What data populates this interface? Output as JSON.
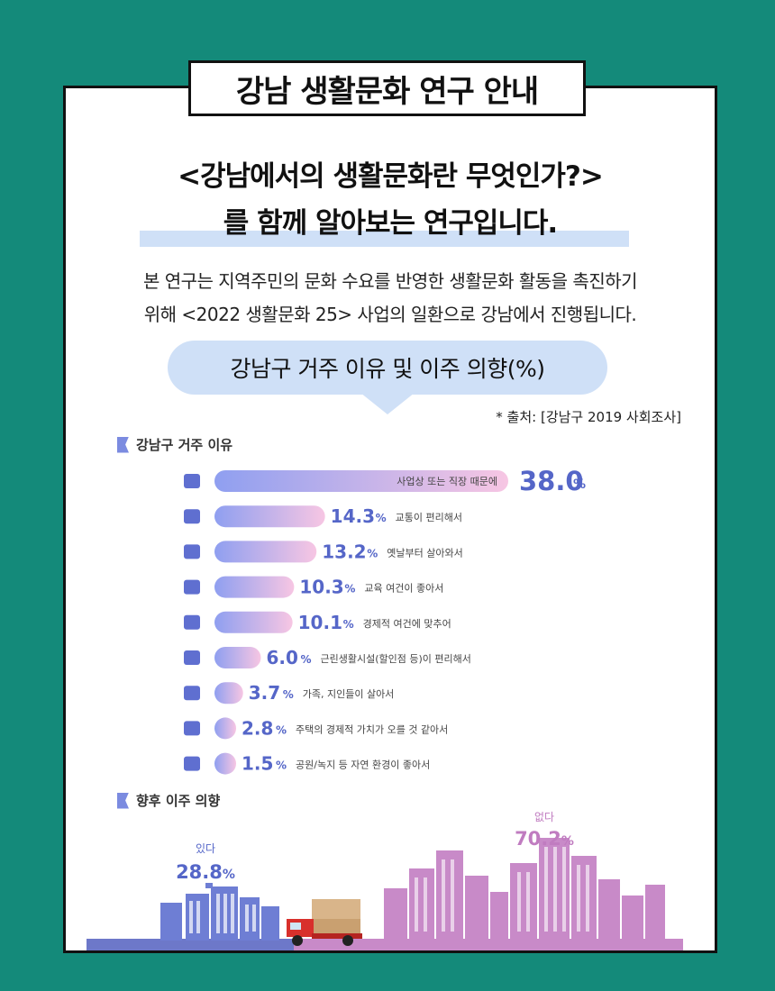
{
  "header": {
    "title": "강남 생활문화 연구 안내"
  },
  "headline": {
    "line1": "<강남에서의 생활문화란 무엇인가?>",
    "line2": "를 함께 알아보는 연구입니다."
  },
  "description": {
    "line1": "본 연구는 지역주민의 문화 수요를 반영한 생활문화 활동을 촉진하기",
    "line2": "위해 <2022 생활문화 25> 사업의 일환으로 강남에서 진행됩니다."
  },
  "bubble": {
    "label": "강남구 거주 이유 및 이주 의향(%)"
  },
  "source": "* 출처: [강남구 2019 사회조사]",
  "sections": {
    "residence": "강남구 거주 이유",
    "moving": "향후 이주 의향"
  },
  "colors": {
    "background": "#148a7a",
    "bar_start": "#8f9ff0",
    "bar_end": "#f7c6e3",
    "accent_blue": "#5566c8",
    "accent_pink": "#c07cc0"
  },
  "chart_data": [
    {
      "type": "bar",
      "orientation": "horizontal",
      "title": "강남구 거주 이유",
      "categories": [
        "사업상 또는 직장 때문에",
        "교통이 편리해서",
        "옛날부터 살아와서",
        "교육 여건이 좋아서",
        "경제적 여건에 맞추어",
        "근린생활시설(할인점 등)이 편리해서",
        "가족, 지인들이 살아서",
        "주택의 경제적 가치가 오를 것 같아서",
        "공원/녹지 등 자연 환경이 좋아서"
      ],
      "values": [
        38.0,
        14.3,
        13.2,
        10.3,
        10.1,
        6.0,
        3.7,
        2.8,
        1.5
      ],
      "value_labels": [
        "38.0",
        "14.3",
        "13.2",
        "10.3",
        "10.1",
        "6.0",
        "3.7",
        "2.8",
        "1.5"
      ],
      "unit": "%",
      "icons": [
        "office-building-icon",
        "train-icon",
        "bed-icon",
        "classroom-icon",
        "money-hand-icon",
        "shop-ticket-icon",
        "people-icon",
        "house-value-icon",
        "tree-icon"
      ]
    },
    {
      "type": "bar",
      "title": "향후 이주 의향",
      "categories": [
        "있다",
        "없다"
      ],
      "values": [
        28.8,
        70.2
      ],
      "value_labels": [
        "28.8",
        "70.2"
      ],
      "unit": "%"
    }
  ]
}
